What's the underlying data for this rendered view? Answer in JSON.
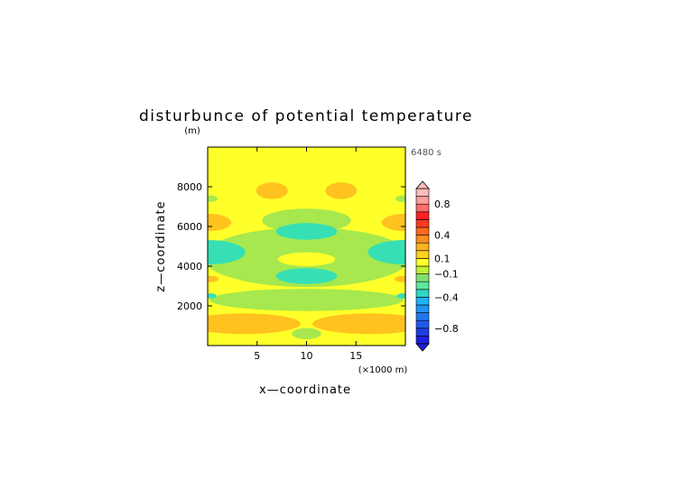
{
  "chart_data": {
    "type": "heatmap",
    "title": "disturbunce of potential temperature",
    "xlabel": "x—coordinate",
    "ylabel": "z—coordinate",
    "x_unit": "(×1000 m)",
    "y_unit": "(m)",
    "time_label": "6480 s",
    "xlim": [
      0,
      20
    ],
    "ylim": [
      0,
      10000
    ],
    "x_ticks": [
      5,
      10,
      15
    ],
    "y_ticks": [
      2000,
      4000,
      6000,
      8000
    ],
    "colorbar": {
      "levels": [
        -1.0,
        -0.9,
        -0.8,
        -0.7,
        -0.6,
        -0.5,
        -0.4,
        -0.3,
        -0.2,
        -0.1,
        0.0,
        0.1,
        0.2,
        0.3,
        0.4,
        0.5,
        0.6,
        0.7,
        0.8,
        0.9,
        1.0
      ],
      "colors": [
        "#1f1fe0",
        "#1f3ce6",
        "#1f5aec",
        "#1f78f0",
        "#1f95f4",
        "#1fb2f8",
        "#2fd8c4",
        "#5fe8a0",
        "#7fe070",
        "#c0f030",
        "#ffff2a",
        "#ffd21f",
        "#ffb21f",
        "#ff8c1f",
        "#ff6a1f",
        "#ff3c1f",
        "#ff1f1f",
        "#ff6c6c",
        "#ff9c9c",
        "#ffbcbc"
      ],
      "tick_labels": [
        "−0.8",
        "−0.4",
        "−0.1",
        "0.1",
        "0.4",
        "0.8"
      ],
      "tick_values": [
        -0.8,
        -0.4,
        -0.1,
        0.1,
        0.4,
        0.8
      ]
    },
    "field_fill": {
      "warm_weak": "#ffff2a",
      "warm_mid": "#ffc21f",
      "cool_weak": "#a6e84e",
      "cool_mid": "#36e0b4"
    },
    "regions": [
      {
        "level": "cool_weak",
        "shape": "ellipse",
        "cx": 10,
        "cy": 2300,
        "rx": 9.8,
        "ry": 560
      },
      {
        "level": "cool_weak",
        "shape": "ellipse",
        "cx": 10,
        "cy": 4450,
        "rx": 10.5,
        "ry": 1500
      },
      {
        "level": "cool_weak",
        "shape": "ellipse",
        "cx": 10,
        "cy": 6300,
        "rx": 4.5,
        "ry": 600
      },
      {
        "level": "cool_weak",
        "shape": "ellipse",
        "cx": 10,
        "cy": 600,
        "rx": 1.5,
        "ry": 280
      },
      {
        "level": "cool_weak",
        "shape": "ellipse",
        "cx": 0.3,
        "cy": 7400,
        "rx": 0.7,
        "ry": 160
      },
      {
        "level": "cool_weak",
        "shape": "ellipse",
        "cx": 19.7,
        "cy": 7400,
        "rx": 0.7,
        "ry": 160
      },
      {
        "level": "warm_weak",
        "shape": "ellipse",
        "cx": 10,
        "cy": 4350,
        "rx": 2.9,
        "ry": 350
      },
      {
        "level": "cool_mid",
        "shape": "ellipse",
        "cx": 10,
        "cy": 5750,
        "rx": 3.1,
        "ry": 420
      },
      {
        "level": "cool_mid",
        "shape": "ellipse",
        "cx": 10,
        "cy": 3500,
        "rx": 3.1,
        "ry": 400
      },
      {
        "level": "cool_mid",
        "shape": "ellipse",
        "cx": 0.0,
        "cy": 4700,
        "rx": 3.8,
        "ry": 620
      },
      {
        "level": "cool_mid",
        "shape": "ellipse",
        "cx": 20.0,
        "cy": 4700,
        "rx": 3.8,
        "ry": 620
      },
      {
        "level": "cool_mid",
        "shape": "ellipse",
        "cx": 0.3,
        "cy": 2500,
        "rx": 0.6,
        "ry": 130
      },
      {
        "level": "cool_mid",
        "shape": "ellipse",
        "cx": 19.7,
        "cy": 2500,
        "rx": 0.6,
        "ry": 130
      },
      {
        "level": "warm_mid",
        "shape": "ellipse",
        "cx": 6.5,
        "cy": 7800,
        "rx": 1.6,
        "ry": 420
      },
      {
        "level": "warm_mid",
        "shape": "ellipse",
        "cx": 13.5,
        "cy": 7800,
        "rx": 1.6,
        "ry": 420
      },
      {
        "level": "warm_mid",
        "shape": "ellipse",
        "cx": 0.0,
        "cy": 6200,
        "rx": 2.4,
        "ry": 440
      },
      {
        "level": "warm_mid",
        "shape": "ellipse",
        "cx": 20.0,
        "cy": 6200,
        "rx": 2.4,
        "ry": 440
      },
      {
        "level": "warm_mid",
        "shape": "ellipse",
        "cx": 0.3,
        "cy": 3350,
        "rx": 0.8,
        "ry": 160
      },
      {
        "level": "warm_mid",
        "shape": "ellipse",
        "cx": 19.7,
        "cy": 3350,
        "rx": 0.8,
        "ry": 160
      },
      {
        "level": "warm_mid",
        "shape": "ellipse",
        "cx": 3.6,
        "cy": 1100,
        "rx": 5.8,
        "ry": 520
      },
      {
        "level": "warm_mid",
        "shape": "ellipse",
        "cx": 16.4,
        "cy": 1100,
        "rx": 5.8,
        "ry": 520
      }
    ]
  }
}
